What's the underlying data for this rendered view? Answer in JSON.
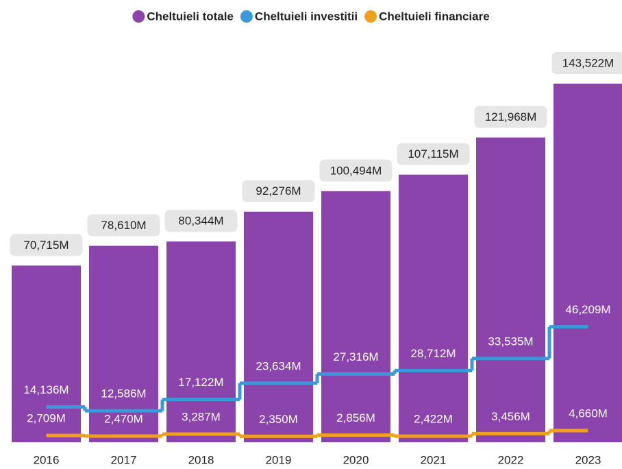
{
  "chart_data": {
    "type": "bar",
    "categories": [
      "2016",
      "2017",
      "2018",
      "2019",
      "2020",
      "2021",
      "2022",
      "2023"
    ],
    "series": [
      {
        "name": "Cheltuieli totale",
        "type": "bar",
        "color": "#8b44ac",
        "values": [
          70715,
          78610,
          80344,
          92276,
          100494,
          107115,
          121968,
          143522
        ],
        "value_labels": [
          "70,715M",
          "78,610M",
          "80,344M",
          "92,276M",
          "100,494M",
          "107,115M",
          "121,968M",
          "143,522M"
        ]
      },
      {
        "name": "Cheltuieli investitii",
        "type": "step",
        "color": "#3a9ad9",
        "values": [
          14136,
          12586,
          17122,
          23634,
          27316,
          28712,
          33535,
          46209
        ],
        "value_labels": [
          "14,136M",
          "12,586M",
          "17,122M",
          "23,634M",
          "27,316M",
          "28,712M",
          "33,535M",
          "46,209M"
        ]
      },
      {
        "name": "Cheltuieli financiare",
        "type": "step",
        "color": "#f0a01c",
        "values": [
          2709,
          2470,
          3287,
          2350,
          2856,
          2422,
          3456,
          4660
        ],
        "value_labels": [
          "2,709M",
          "2,470M",
          "3,287M",
          "2,350M",
          "2,856M",
          "2,422M",
          "3,456M",
          "4,660M"
        ]
      }
    ],
    "legend": "top"
  }
}
